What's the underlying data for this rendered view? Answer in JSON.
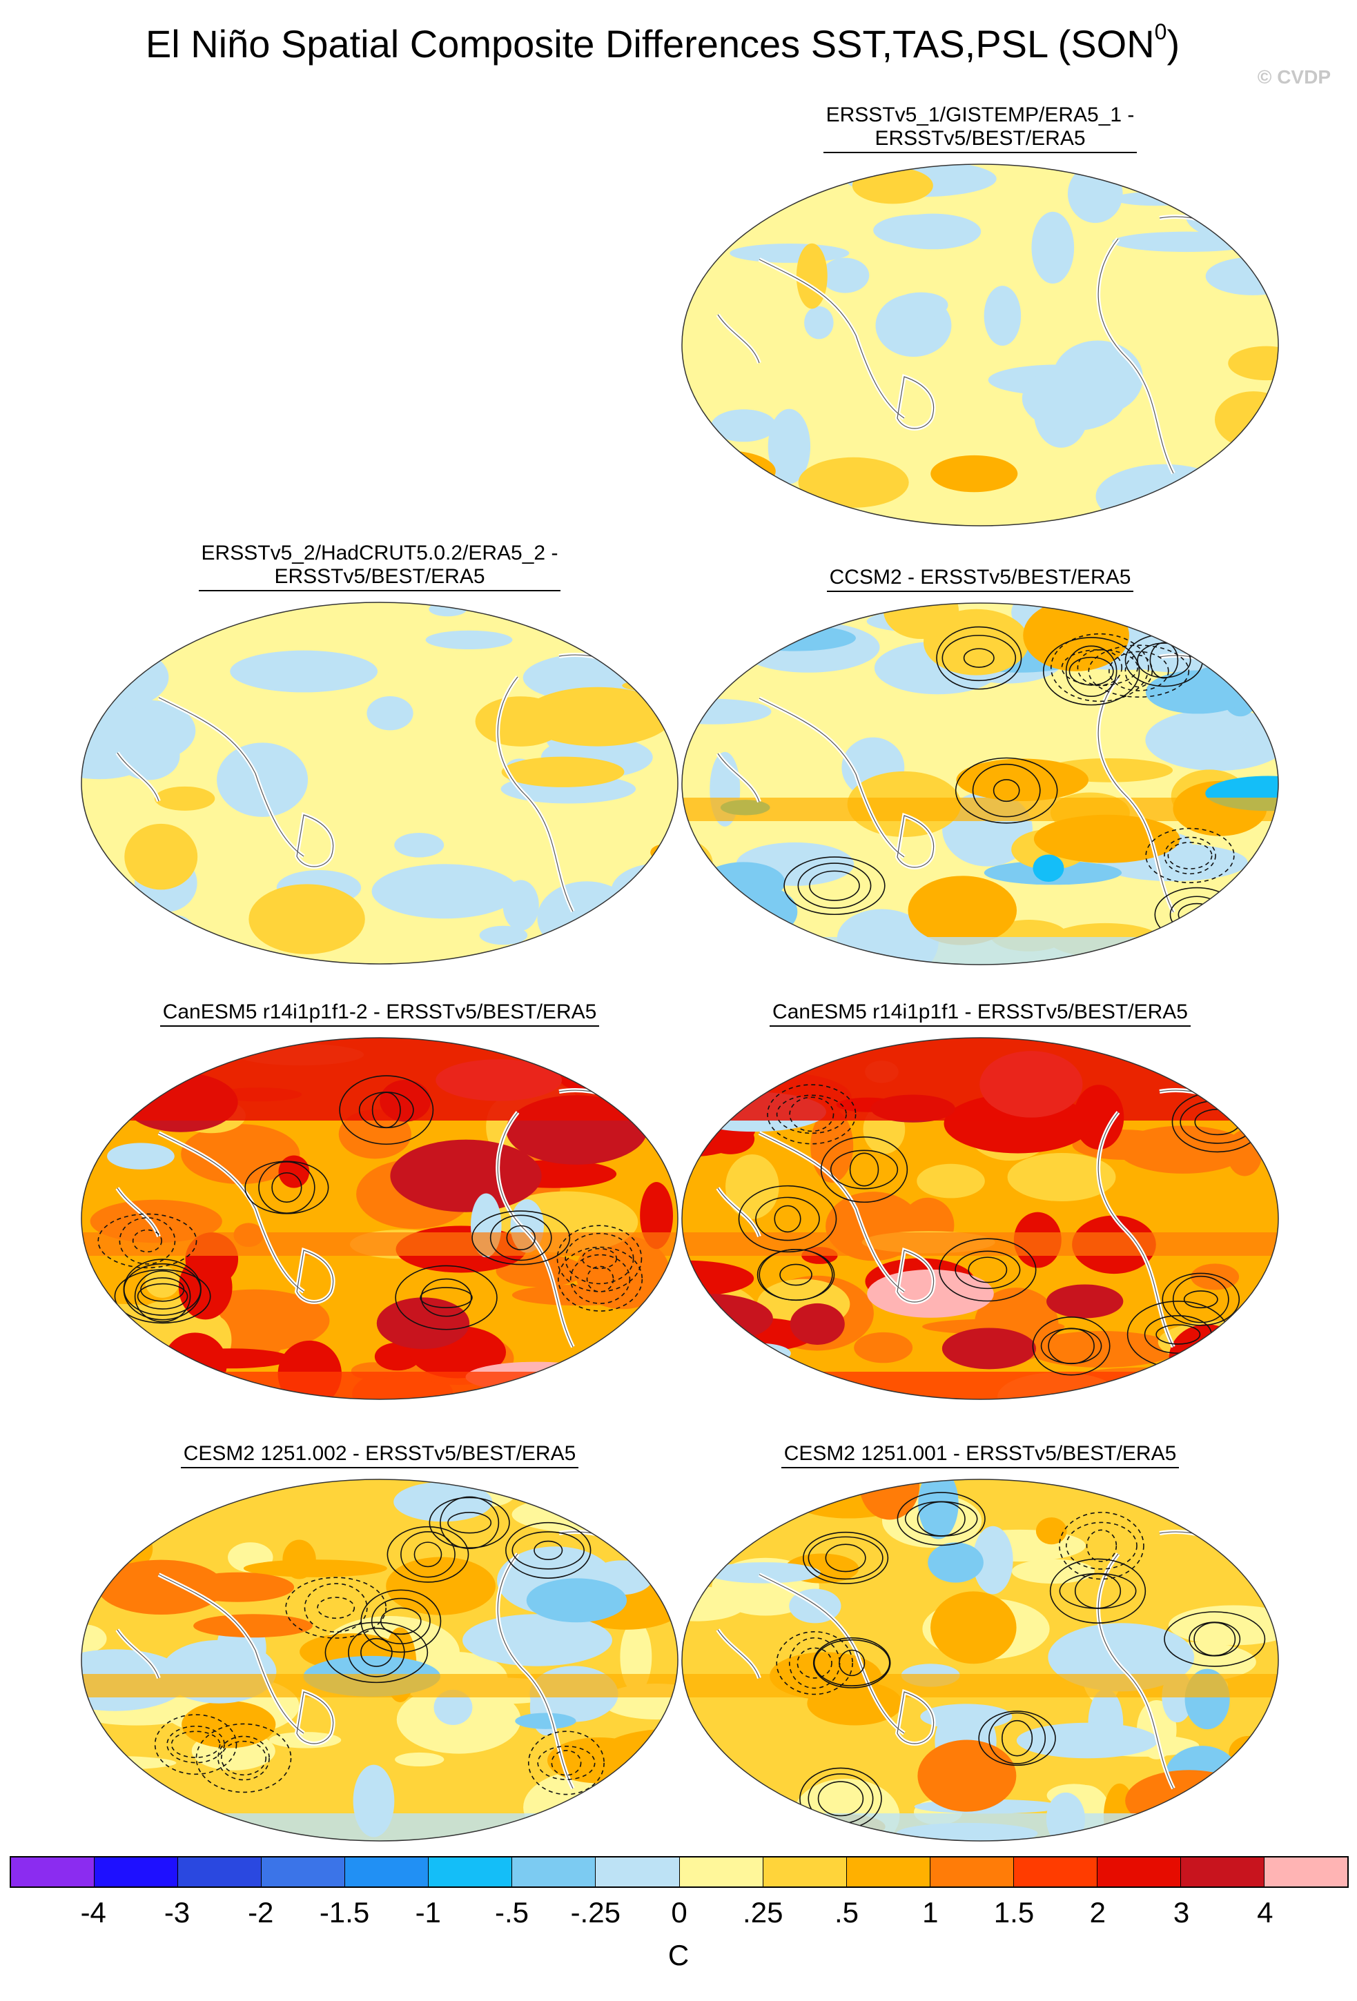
{
  "title": "El Niño Spatial Composite Differences SST,TAS,PSL (SON",
  "title_superscript": "0",
  "title_suffix": ")",
  "credit": "© CVDP",
  "panels": [
    {
      "label": "ERSSTv5_1/GISTEMP/ERA5_1 -\nERSSTv5/BEST/ERA5",
      "style": "weak"
    },
    {
      "label": "ERSSTv5_2/HadCRUT5.0.2/ERA5_2 -\nERSSTv5/BEST/ERA5",
      "style": "weak"
    },
    {
      "label": "CCSM2 - ERSSTv5/BEST/ERA5",
      "style": "mixed"
    },
    {
      "label": "CanESM5 r14i1p1f1-2 - ERSSTv5/BEST/ERA5",
      "style": "warm"
    },
    {
      "label": "CanESM5 r14i1p1f1 - ERSSTv5/BEST/ERA5",
      "style": "warm"
    },
    {
      "label": "CESM2 1251.002 - ERSSTv5/BEST/ERA5",
      "style": "moderate"
    },
    {
      "label": "CESM2 1251.001 - ERSSTv5/BEST/ERA5",
      "style": "moderate"
    }
  ],
  "colorbar": {
    "colors": [
      "#8b2cf0",
      "#1e10ff",
      "#2a48e0",
      "#3b74e8",
      "#2190f4",
      "#14bef8",
      "#7ccbf2",
      "#bde2f5",
      "#fff79a",
      "#ffd43a",
      "#ffb000",
      "#ff7c08",
      "#ff3c00",
      "#e60c00",
      "#c8141e",
      "#ffb4b4"
    ],
    "ticks": [
      "-4",
      "-3",
      "-2",
      "-1.5",
      "-1",
      "-.5",
      "-.25",
      "0",
      ".25",
      ".5",
      "1",
      "1.5",
      "2",
      "3",
      "4"
    ],
    "unit": "C"
  }
}
